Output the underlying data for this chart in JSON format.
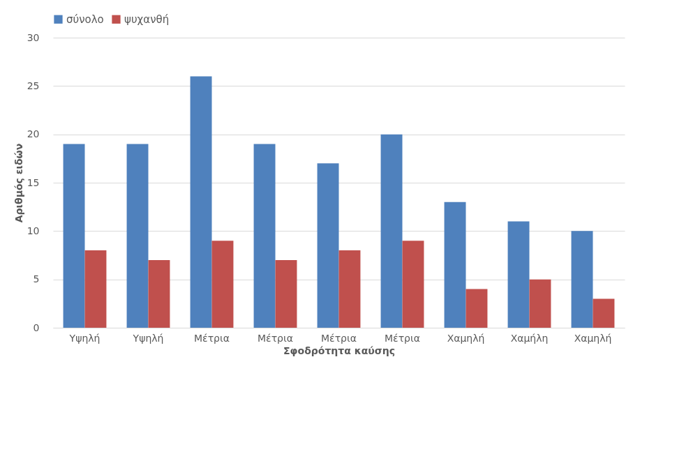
{
  "chart_data": {
    "type": "bar",
    "xlabel": "Σφοδρότητα καύσης",
    "ylabel": "Αριθμός ειδών",
    "categories": [
      "Υψηλή",
      "Υψηλή",
      "Μέτρια",
      "Μέτρια",
      "Μέτρια",
      "Μέτρια",
      "Χαμηλή",
      "Χαμήλη",
      "Χαμηλή"
    ],
    "series": [
      {
        "name": "σύνολο",
        "color": "#4f81bd",
        "values": [
          19,
          19,
          26,
          19,
          17,
          20,
          13,
          11,
          10
        ]
      },
      {
        "name": "ψυχανθή",
        "color": "#c0504d",
        "values": [
          8,
          7,
          9,
          7,
          8,
          9,
          4,
          5,
          3
        ]
      }
    ],
    "ylim": [
      0,
      30
    ],
    "yticks": [
      0,
      5,
      10,
      15,
      20,
      25,
      30
    ],
    "grid": "y",
    "legend": "top"
  }
}
